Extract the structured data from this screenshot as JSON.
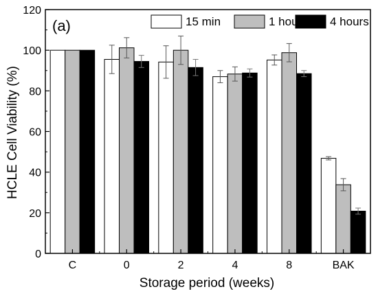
{
  "chart_data": {
    "type": "bar",
    "panel_label": "(a)",
    "xlabel": "Storage period (weeks)",
    "ylabel": "HCLE Cell Viability (%)",
    "ylim": [
      0,
      120
    ],
    "yticks": [
      0,
      20,
      40,
      60,
      80,
      100,
      120
    ],
    "categories": [
      "C",
      "0",
      "2",
      "4",
      "8",
      "BAK"
    ],
    "legend_position": "top-right",
    "series": [
      {
        "name": "15 min",
        "color": "#ffffff",
        "values": [
          100,
          95.5,
          94.2,
          87.0,
          95.2,
          46.8
        ],
        "errors": [
          0,
          7.0,
          8.0,
          3.0,
          2.5,
          0.8
        ]
      },
      {
        "name": "1 hour",
        "color": "#bebebe",
        "values": [
          100,
          101.2,
          100.0,
          88.3,
          98.8,
          33.8
        ],
        "errors": [
          0,
          5.0,
          7.0,
          3.5,
          4.5,
          3.0
        ]
      },
      {
        "name": "4 hours",
        "color": "#000000",
        "values": [
          100,
          94.5,
          91.5,
          88.8,
          88.5,
          20.8
        ],
        "errors": [
          0,
          3.0,
          4.0,
          2.0,
          1.5,
          1.5
        ]
      }
    ]
  }
}
